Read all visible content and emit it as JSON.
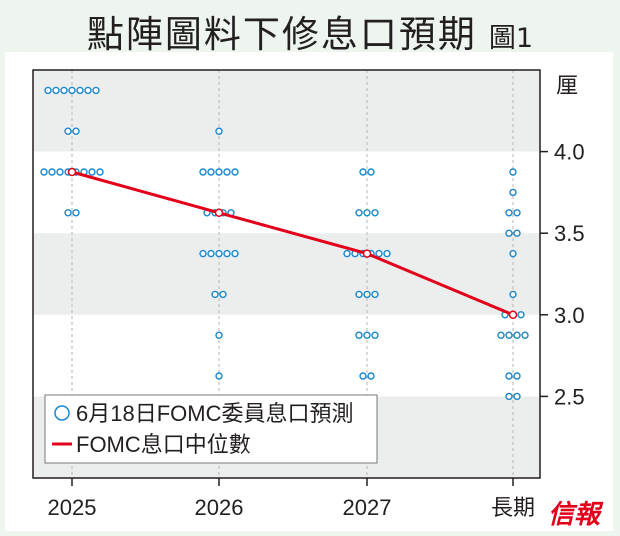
{
  "title": "點陣圖料下修息口預期",
  "figure_label": "圖1",
  "logo_text": "信報",
  "chart_data": {
    "type": "scatter",
    "title": "點陣圖料下修息口預期",
    "ylabel": "厘",
    "categories": [
      "2025",
      "2026",
      "2027",
      "長期"
    ],
    "ylim": [
      2.0,
      4.5
    ],
    "yticks": [
      2.5,
      3.0,
      3.5,
      4.0
    ],
    "ytick_labels": [
      "2.5",
      "3.0",
      "3.5",
      "4.0"
    ],
    "grid": "vertical dashed lines at categories; alternating gray bands",
    "legend_placement": "bottom-left",
    "colors": {
      "dots": "#1a87c9",
      "median": "#e2001a",
      "band": "#eceeee"
    },
    "dots": [
      {
        "category": "2025",
        "counts": [
          {
            "rate": 4.375,
            "n": 7
          },
          {
            "rate": 4.125,
            "n": 2
          },
          {
            "rate": 3.875,
            "n": 8
          },
          {
            "rate": 3.625,
            "n": 2
          }
        ]
      },
      {
        "category": "2026",
        "counts": [
          {
            "rate": 4.125,
            "n": 1
          },
          {
            "rate": 3.875,
            "n": 5
          },
          {
            "rate": 3.625,
            "n": 4
          },
          {
            "rate": 3.375,
            "n": 5
          },
          {
            "rate": 3.125,
            "n": 2
          },
          {
            "rate": 2.875,
            "n": 1
          },
          {
            "rate": 2.625,
            "n": 1
          }
        ]
      },
      {
        "category": "2027",
        "counts": [
          {
            "rate": 3.875,
            "n": 2
          },
          {
            "rate": 3.625,
            "n": 3
          },
          {
            "rate": 3.375,
            "n": 6
          },
          {
            "rate": 3.125,
            "n": 3
          },
          {
            "rate": 2.875,
            "n": 3
          },
          {
            "rate": 2.625,
            "n": 2
          }
        ]
      },
      {
        "category": "長期",
        "counts": [
          {
            "rate": 3.875,
            "n": 1
          },
          {
            "rate": 3.75,
            "n": 1
          },
          {
            "rate": 3.625,
            "n": 2
          },
          {
            "rate": 3.5,
            "n": 2
          },
          {
            "rate": 3.375,
            "n": 1
          },
          {
            "rate": 3.125,
            "n": 1
          },
          {
            "rate": 3.0,
            "n": 3
          },
          {
            "rate": 2.875,
            "n": 4
          },
          {
            "rate": 2.625,
            "n": 2
          },
          {
            "rate": 2.5,
            "n": 2
          }
        ]
      }
    ],
    "median": {
      "name": "FOMC息口中位數",
      "values": [
        3.875,
        3.625,
        3.375,
        3.0
      ]
    },
    "legend": [
      "6月18日FOMC委員息口預測",
      "FOMC息口中位數"
    ]
  }
}
